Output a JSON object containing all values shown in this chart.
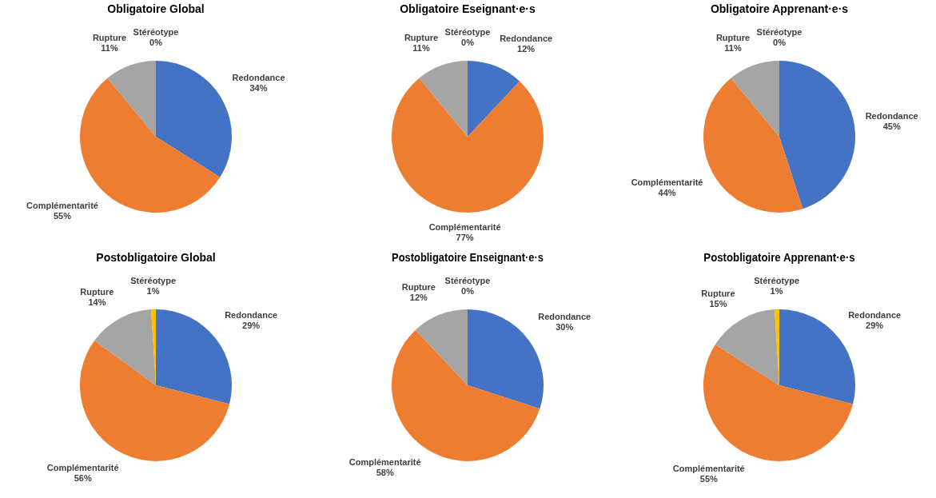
{
  "chart_data": [
    {
      "type": "pie",
      "title": "Obligatoire Global",
      "categories": [
        "Redondance",
        "Complémentarité",
        "Rupture",
        "Stéréotype"
      ],
      "values": [
        34,
        55,
        11,
        0
      ],
      "value_labels": [
        "34%",
        "55%",
        "11%",
        "0%"
      ],
      "colors": [
        "#4472c4",
        "#ed7d31",
        "#a5a5a5",
        "#ffc000"
      ],
      "legend": false
    },
    {
      "type": "pie",
      "title": "Obligatoire Eseignant·e·s",
      "categories": [
        "Redondance",
        "Complémentarité",
        "Rupture",
        "Stéréotype"
      ],
      "values": [
        12,
        77,
        11,
        0
      ],
      "value_labels": [
        "12%",
        "77%",
        "11%",
        "0%"
      ],
      "colors": [
        "#4472c4",
        "#ed7d31",
        "#a5a5a5",
        "#ffc000"
      ],
      "legend": false
    },
    {
      "type": "pie",
      "title": "Obligatoire Apprenant·e·s",
      "categories": [
        "Redondance",
        "Complémentarité",
        "Rupture",
        "Stéréotype"
      ],
      "values": [
        45,
        44,
        11,
        0
      ],
      "value_labels": [
        "45%",
        "44%",
        "11%",
        "0%"
      ],
      "colors": [
        "#4472c4",
        "#ed7d31",
        "#a5a5a5",
        "#ffc000"
      ],
      "legend": false
    },
    {
      "type": "pie",
      "title": "Postobligatoire Global",
      "categories": [
        "Redondance",
        "Complémentarité",
        "Rupture",
        "Stéréotype"
      ],
      "values": [
        29,
        56,
        14,
        1
      ],
      "value_labels": [
        "29%",
        "56%",
        "14%",
        "1%"
      ],
      "colors": [
        "#4472c4",
        "#ed7d31",
        "#a5a5a5",
        "#ffc000"
      ],
      "legend": false
    },
    {
      "type": "pie",
      "title": "Postobligatoire Enseignant·e·s",
      "categories": [
        "Redondance",
        "Complémentarité",
        "Rupture",
        "Stéréotype"
      ],
      "values": [
        30,
        58,
        12,
        0
      ],
      "value_labels": [
        "30%",
        "58%",
        "12%",
        "0%"
      ],
      "colors": [
        "#4472c4",
        "#ed7d31",
        "#a5a5a5",
        "#ffc000"
      ],
      "legend": false
    },
    {
      "type": "pie",
      "title": "Postobligatoire Apprenant·e·s",
      "categories": [
        "Redondance",
        "Complémentarité",
        "Rupture",
        "Stéréotype"
      ],
      "values": [
        29,
        55,
        15,
        1
      ],
      "value_labels": [
        "29%",
        "55%",
        "15%",
        "1%"
      ],
      "colors": [
        "#4472c4",
        "#ed7d31",
        "#a5a5a5",
        "#ffc000"
      ],
      "legend": false
    }
  ]
}
